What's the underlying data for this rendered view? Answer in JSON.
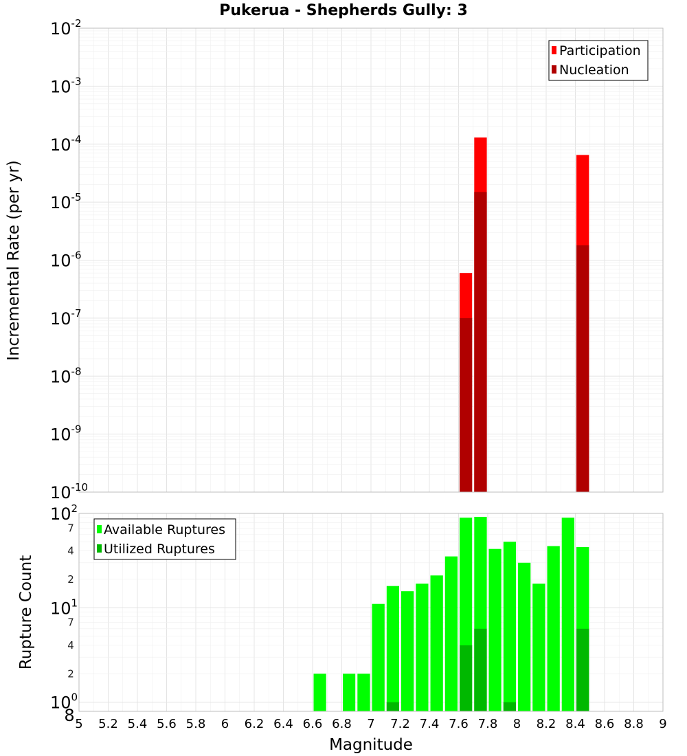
{
  "chart_data": [
    {
      "type": "bar",
      "panel": "top",
      "title": "Pukerua - Shepherds Gully: 3",
      "xlabel": "Magnitude",
      "ylabel": "Incremental Rate (per yr)",
      "yscale": "log",
      "ylim": [
        1e-10,
        0.01
      ],
      "xlim": [
        5,
        9
      ],
      "bar_width": 0.1,
      "legend": [
        "Participation",
        "Nucleation"
      ],
      "legend_position": "top-right",
      "series": [
        {
          "name": "Participation",
          "color": "#ff0000",
          "x": [
            7.65,
            7.75,
            8.45
          ],
          "values": [
            6e-07,
            0.00013,
            6.5e-05
          ]
        },
        {
          "name": "Nucleation",
          "color": "#b00000",
          "x": [
            7.65,
            7.75,
            8.45
          ],
          "values": [
            1e-07,
            1.5e-05,
            1.8e-06
          ]
        }
      ]
    },
    {
      "type": "bar",
      "panel": "bottom",
      "xlabel": "Magnitude",
      "ylabel": "Rupture Count",
      "yscale": "log",
      "ylim": [
        0.8,
        100
      ],
      "xlim": [
        5,
        9
      ],
      "bar_width": 0.1,
      "legend": [
        "Available Ruptures",
        "Utilized Ruptures"
      ],
      "legend_position": "top-left",
      "series": [
        {
          "name": "Available Ruptures",
          "color": "#00ff00",
          "x": [
            6.65,
            6.85,
            6.95,
            7.05,
            7.15,
            7.25,
            7.35,
            7.45,
            7.55,
            7.65,
            7.75,
            7.85,
            7.95,
            8.05,
            8.15,
            8.25,
            8.35,
            8.45
          ],
          "values": [
            2,
            2,
            2,
            11,
            17,
            15,
            18,
            22,
            35,
            90,
            92,
            42,
            50,
            30,
            18,
            45,
            90,
            44
          ]
        },
        {
          "name": "Utilized Ruptures",
          "color": "#00b800",
          "x": [
            7.15,
            7.65,
            7.75,
            7.95,
            8.45
          ],
          "values": [
            1,
            4,
            6,
            1,
            6
          ]
        }
      ]
    }
  ],
  "axis_text": {
    "x_ticks": [
      "5",
      "5.2",
      "5.4",
      "5.6",
      "5.8",
      "6",
      "6.2",
      "6.4",
      "6.6",
      "6.8",
      "7",
      "7.2",
      "7.4",
      "7.6",
      "7.8",
      "8",
      "8.2",
      "8.4",
      "8.6",
      "8.8",
      "9"
    ],
    "top_decades": [
      {
        "base": "10",
        "exp": "-2"
      },
      {
        "base": "10",
        "exp": "-3"
      },
      {
        "base": "10",
        "exp": "-4"
      },
      {
        "base": "10",
        "exp": "-5"
      },
      {
        "base": "10",
        "exp": "-6"
      },
      {
        "base": "10",
        "exp": "-7"
      },
      {
        "base": "10",
        "exp": "-8"
      },
      {
        "base": "10",
        "exp": "-9"
      },
      {
        "base": "10",
        "exp": "-10"
      }
    ],
    "bottom_decades": [
      {
        "base": "10",
        "exp": "2"
      },
      {
        "base": "10",
        "exp": "1"
      },
      {
        "base": "10",
        "exp": "0"
      }
    ],
    "bottom_minor_labels": [
      "7",
      "4",
      "2",
      "7",
      "4",
      "2"
    ],
    "bottom_axis_floor_label": "8"
  },
  "colors": {
    "participation": "#ff0000",
    "nucleation": "#b00000",
    "available": "#00ff00",
    "utilized": "#00b800",
    "grid": "#e4e4e4",
    "frame": "#bdbdbd"
  }
}
